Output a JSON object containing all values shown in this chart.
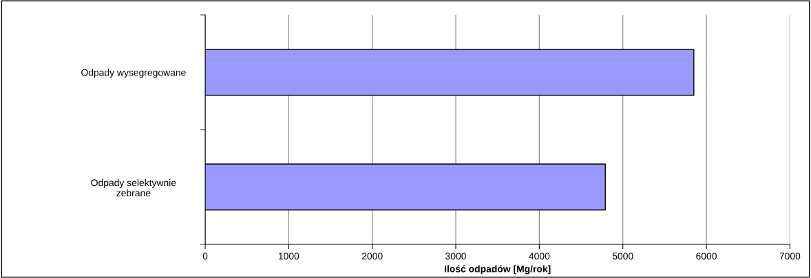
{
  "chart_data": {
    "type": "bar",
    "orientation": "horizontal",
    "xlabel": "Ilość odpadów [Mg/rok]",
    "categories": [
      "Odpady wysegregowane",
      "Odpady selektywnie\nzebrane"
    ],
    "values": [
      5850,
      4790
    ],
    "color": "#9999ff",
    "xlim": [
      0,
      7000
    ],
    "xticks": [
      0,
      1000,
      2000,
      3000,
      4000,
      5000,
      6000,
      7000
    ],
    "grid": "x",
    "legend": false
  }
}
